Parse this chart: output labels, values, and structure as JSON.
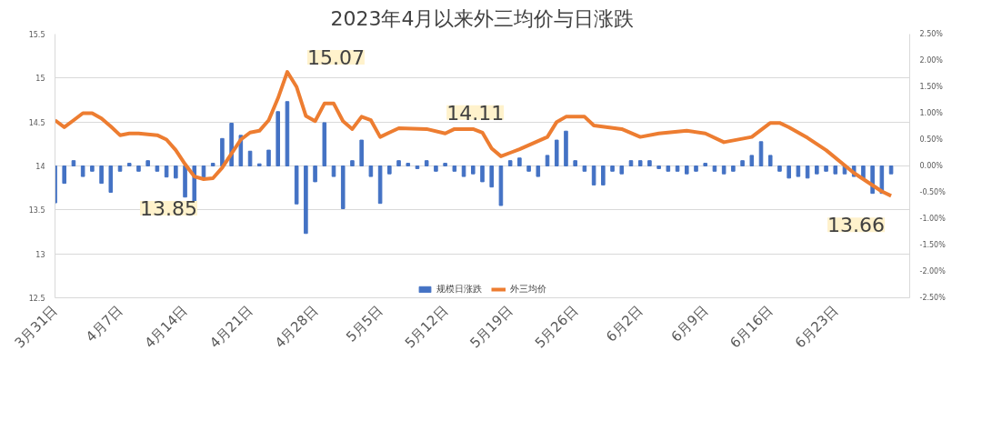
{
  "chart_data": {
    "type": "bar",
    "title": "2023年4月以来外三均价与日涨跌",
    "x": [
      "2023-03-31",
      "2023-04-01",
      "2023-04-02",
      "2023-04-03",
      "2023-04-04",
      "2023-04-05",
      "2023-04-06",
      "2023-04-07",
      "2023-04-08",
      "2023-04-09",
      "2023-04-10",
      "2023-04-11",
      "2023-04-12",
      "2023-04-13",
      "2023-04-14",
      "2023-04-15",
      "2023-04-16",
      "2023-04-17",
      "2023-04-18",
      "2023-04-19",
      "2023-04-20",
      "2023-04-21",
      "2023-04-22",
      "2023-04-23",
      "2023-04-24",
      "2023-04-25",
      "2023-04-26",
      "2023-04-27",
      "2023-04-28",
      "2023-04-29",
      "2023-04-30",
      "2023-05-01",
      "2023-05-02",
      "2023-05-03",
      "2023-05-04",
      "2023-05-05",
      "2023-05-06",
      "2023-05-07",
      "2023-05-08",
      "2023-05-09",
      "2023-05-10",
      "2023-05-11",
      "2023-05-12",
      "2023-05-13",
      "2023-05-14",
      "2023-05-15",
      "2023-05-16",
      "2023-05-17",
      "2023-05-18",
      "2023-05-19",
      "2023-05-20",
      "2023-05-21",
      "2023-05-22",
      "2023-05-23",
      "2023-05-24",
      "2023-05-25",
      "2023-05-26",
      "2023-05-27",
      "2023-05-28",
      "2023-05-29",
      "2023-05-30",
      "2023-05-31",
      "2023-06-01",
      "2023-06-02",
      "2023-06-03",
      "2023-06-04",
      "2023-06-05",
      "2023-06-06",
      "2023-06-07",
      "2023-06-08",
      "2023-06-09",
      "2023-06-10",
      "2023-06-11",
      "2023-06-12",
      "2023-06-13",
      "2023-06-14",
      "2023-06-15",
      "2023-06-16",
      "2023-06-17",
      "2023-06-18",
      "2023-06-19",
      "2023-06-20",
      "2023-06-21",
      "2023-06-22",
      "2023-06-23",
      "2023-06-24",
      "2023-06-25",
      "2023-06-26",
      "2023-06-27",
      "2023-06-28",
      "2023-06-29"
    ],
    "series": [
      {
        "name": "规模日涨跌",
        "axis": "y2",
        "color": "#4472c4",
        "values": [
          -0.7,
          -0.33,
          0.1,
          -0.2,
          -0.1,
          -0.33,
          -0.5,
          -0.1,
          0.05,
          -0.1,
          0.1,
          -0.1,
          -0.21,
          -0.23,
          -0.59,
          -0.68,
          -0.21,
          0.05,
          0.52,
          0.81,
          0.58,
          0.28,
          0.04,
          0.3,
          1.03,
          1.22,
          -0.72,
          -1.28,
          -0.3,
          0.82,
          -0.2,
          -0.81,
          0.1,
          0.49,
          -0.2,
          -0.71,
          -0.15,
          0.1,
          0.05,
          -0.05,
          0.1,
          -0.1,
          0.05,
          -0.1,
          -0.2,
          -0.15,
          -0.3,
          -0.4,
          -0.75,
          0.1,
          0.15,
          -0.1,
          -0.2,
          0.2,
          0.49,
          0.66,
          0.1,
          -0.1,
          -0.36,
          -0.36,
          -0.1,
          -0.15,
          0.1,
          0.1,
          0.1,
          -0.05,
          -0.1,
          -0.1,
          -0.15,
          -0.1,
          0.05,
          -0.1,
          -0.15,
          -0.1,
          0.1,
          0.2,
          0.46,
          0.2,
          -0.1,
          -0.23,
          -0.2,
          -0.23,
          -0.15,
          -0.1,
          -0.15,
          -0.15,
          -0.2,
          -0.25,
          -0.52,
          -0.52,
          -0.15
        ]
      },
      {
        "name": "外三均价",
        "type": "line",
        "color": "#ed7d31",
        "x": [
          "2023-03-31",
          "2023-04-01",
          "2023-04-02",
          "2023-04-03",
          "2023-04-04",
          "2023-04-05",
          "2023-04-06",
          "2023-04-07",
          "2023-04-08",
          "2023-04-09",
          "2023-04-10",
          "2023-04-11",
          "2023-04-12",
          "2023-04-13",
          "2023-04-14",
          "2023-04-15",
          "2023-04-16",
          "2023-04-17",
          "2023-04-18",
          "2023-04-19",
          "2023-04-20",
          "2023-04-21",
          "2023-04-22",
          "2023-04-23",
          "2023-04-24",
          "2023-04-25",
          "2023-04-26",
          "2023-04-27",
          "2023-04-28",
          "2023-04-29",
          "2023-04-30",
          "2023-05-01",
          "2023-05-02",
          "2023-05-03",
          "2023-05-04",
          "2023-05-05",
          "2023-05-06",
          "2023-05-07",
          "2023-05-10",
          "2023-05-12",
          "2023-05-13",
          "2023-05-15",
          "2023-05-16",
          "2023-05-17",
          "2023-05-18",
          "2023-05-19",
          "2023-05-20",
          "2023-05-23",
          "2023-05-24",
          "2023-05-25",
          "2023-05-27",
          "2023-05-28",
          "2023-05-31",
          "2023-06-02",
          "2023-06-04",
          "2023-06-07",
          "2023-06-09",
          "2023-06-11",
          "2023-06-14",
          "2023-06-16",
          "2023-06-17",
          "2023-06-18",
          "2023-06-20",
          "2023-06-22",
          "2023-06-25",
          "2023-06-28",
          "2023-06-29"
        ],
        "values": [
          14.52,
          14.44,
          14.52,
          14.6,
          14.6,
          14.54,
          14.45,
          14.35,
          14.37,
          14.37,
          14.36,
          14.35,
          14.3,
          14.18,
          14.02,
          13.88,
          13.85,
          13.86,
          13.98,
          14.14,
          14.3,
          14.38,
          14.4,
          14.52,
          14.77,
          15.07,
          14.9,
          14.57,
          14.51,
          14.71,
          14.71,
          14.51,
          14.42,
          14.56,
          14.52,
          14.33,
          14.38,
          14.43,
          14.42,
          14.37,
          14.42,
          14.42,
          14.38,
          14.2,
          14.11,
          14.15,
          14.19,
          14.33,
          14.5,
          14.56,
          14.56,
          14.46,
          14.42,
          14.33,
          14.37,
          14.4,
          14.37,
          14.27,
          14.33,
          14.49,
          14.49,
          14.44,
          14.32,
          14.18,
          13.92,
          13.71,
          13.66
        ]
      }
    ],
    "xlim": [
      "2023-03-31",
      "2023-07-01"
    ],
    "xticks": [
      {
        "value": "2023-03-31",
        "label": "3月31日"
      },
      {
        "value": "2023-04-07",
        "label": "4月7日"
      },
      {
        "value": "2023-04-14",
        "label": "4月14日"
      },
      {
        "value": "2023-04-21",
        "label": "4月21日"
      },
      {
        "value": "2023-04-28",
        "label": "4月28日"
      },
      {
        "value": "2023-05-05",
        "label": "5月5日"
      },
      {
        "value": "2023-05-12",
        "label": "5月12日"
      },
      {
        "value": "2023-05-19",
        "label": "5月19日"
      },
      {
        "value": "2023-05-26",
        "label": "5月26日"
      },
      {
        "value": "2023-06-02",
        "label": "6月2日"
      },
      {
        "value": "2023-06-09",
        "label": "6月9日"
      },
      {
        "value": "2023-06-16",
        "label": "6月16日"
      },
      {
        "value": "2023-06-23",
        "label": "6月23日"
      }
    ],
    "ylim": [
      12.5,
      15.5
    ],
    "yticks": [
      12.5,
      13,
      13.5,
      14,
      14.5,
      15,
      15.5
    ],
    "y2lim": [
      -2.5,
      2.5
    ],
    "y2ticks": [
      {
        "value": -2.5,
        "label": "-2.50%"
      },
      {
        "value": -2,
        "label": "-2.00%"
      },
      {
        "value": -1.5,
        "label": "-1.50%"
      },
      {
        "value": -1,
        "label": "-1.00%"
      },
      {
        "value": -0.5,
        "label": "-0.50%"
      },
      {
        "value": 0,
        "label": "0.00%"
      },
      {
        "value": 0.5,
        "label": "0.50%"
      },
      {
        "value": 1,
        "label": "1.00%"
      },
      {
        "value": 1.5,
        "label": "1.50%"
      },
      {
        "value": 2,
        "label": "2.00%"
      },
      {
        "value": 2.5,
        "label": "2.50%"
      }
    ],
    "annotations": [
      {
        "text": "15.07",
        "x": "2023-04-25",
        "y": 15.07
      },
      {
        "text": "13.85",
        "x": "2023-04-16",
        "y": 13.85
      },
      {
        "text": "14.11",
        "x": "2023-05-19",
        "y": 14.11
      },
      {
        "text": "13.66",
        "x": "2023-06-29",
        "y": 13.66
      }
    ],
    "grid": "y",
    "legend": "bottom"
  }
}
